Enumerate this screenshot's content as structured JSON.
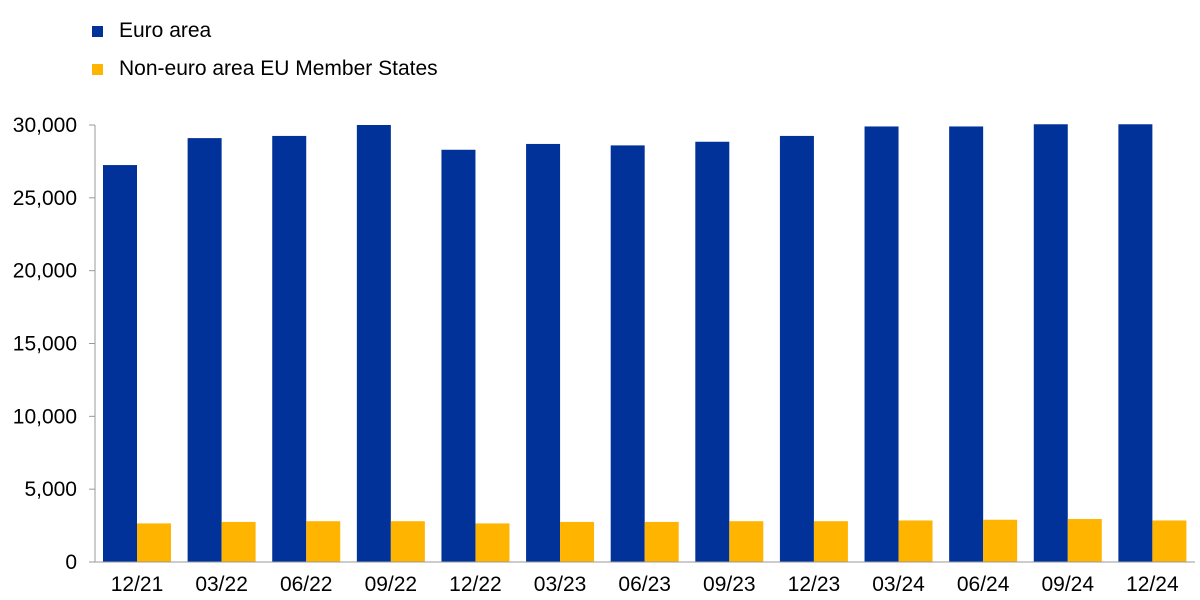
{
  "chart_data": {
    "type": "bar",
    "categories": [
      "12/21",
      "03/22",
      "06/22",
      "09/22",
      "12/22",
      "03/23",
      "06/23",
      "09/23",
      "12/23",
      "03/24",
      "06/24",
      "09/24",
      "12/24"
    ],
    "series": [
      {
        "name": "Euro area",
        "color": "#003299",
        "values": [
          27250,
          29100,
          29250,
          30000,
          28300,
          28700,
          28600,
          28850,
          29250,
          29900,
          29900,
          30050,
          30050
        ]
      },
      {
        "name": "Non-euro area EU Member States",
        "color": "#FFB400",
        "values": [
          2650,
          2750,
          2800,
          2800,
          2650,
          2750,
          2750,
          2800,
          2800,
          2850,
          2900,
          2950,
          2850
        ]
      }
    ],
    "yticks": [
      "0",
      "5,000",
      "10,000",
      "15,000",
      "20,000",
      "25,000",
      "30,000"
    ],
    "ytick_values": [
      0,
      5000,
      10000,
      15000,
      20000,
      25000,
      30000
    ],
    "ylim": [
      0,
      30000
    ],
    "legend": "top-left",
    "grid": false
  }
}
